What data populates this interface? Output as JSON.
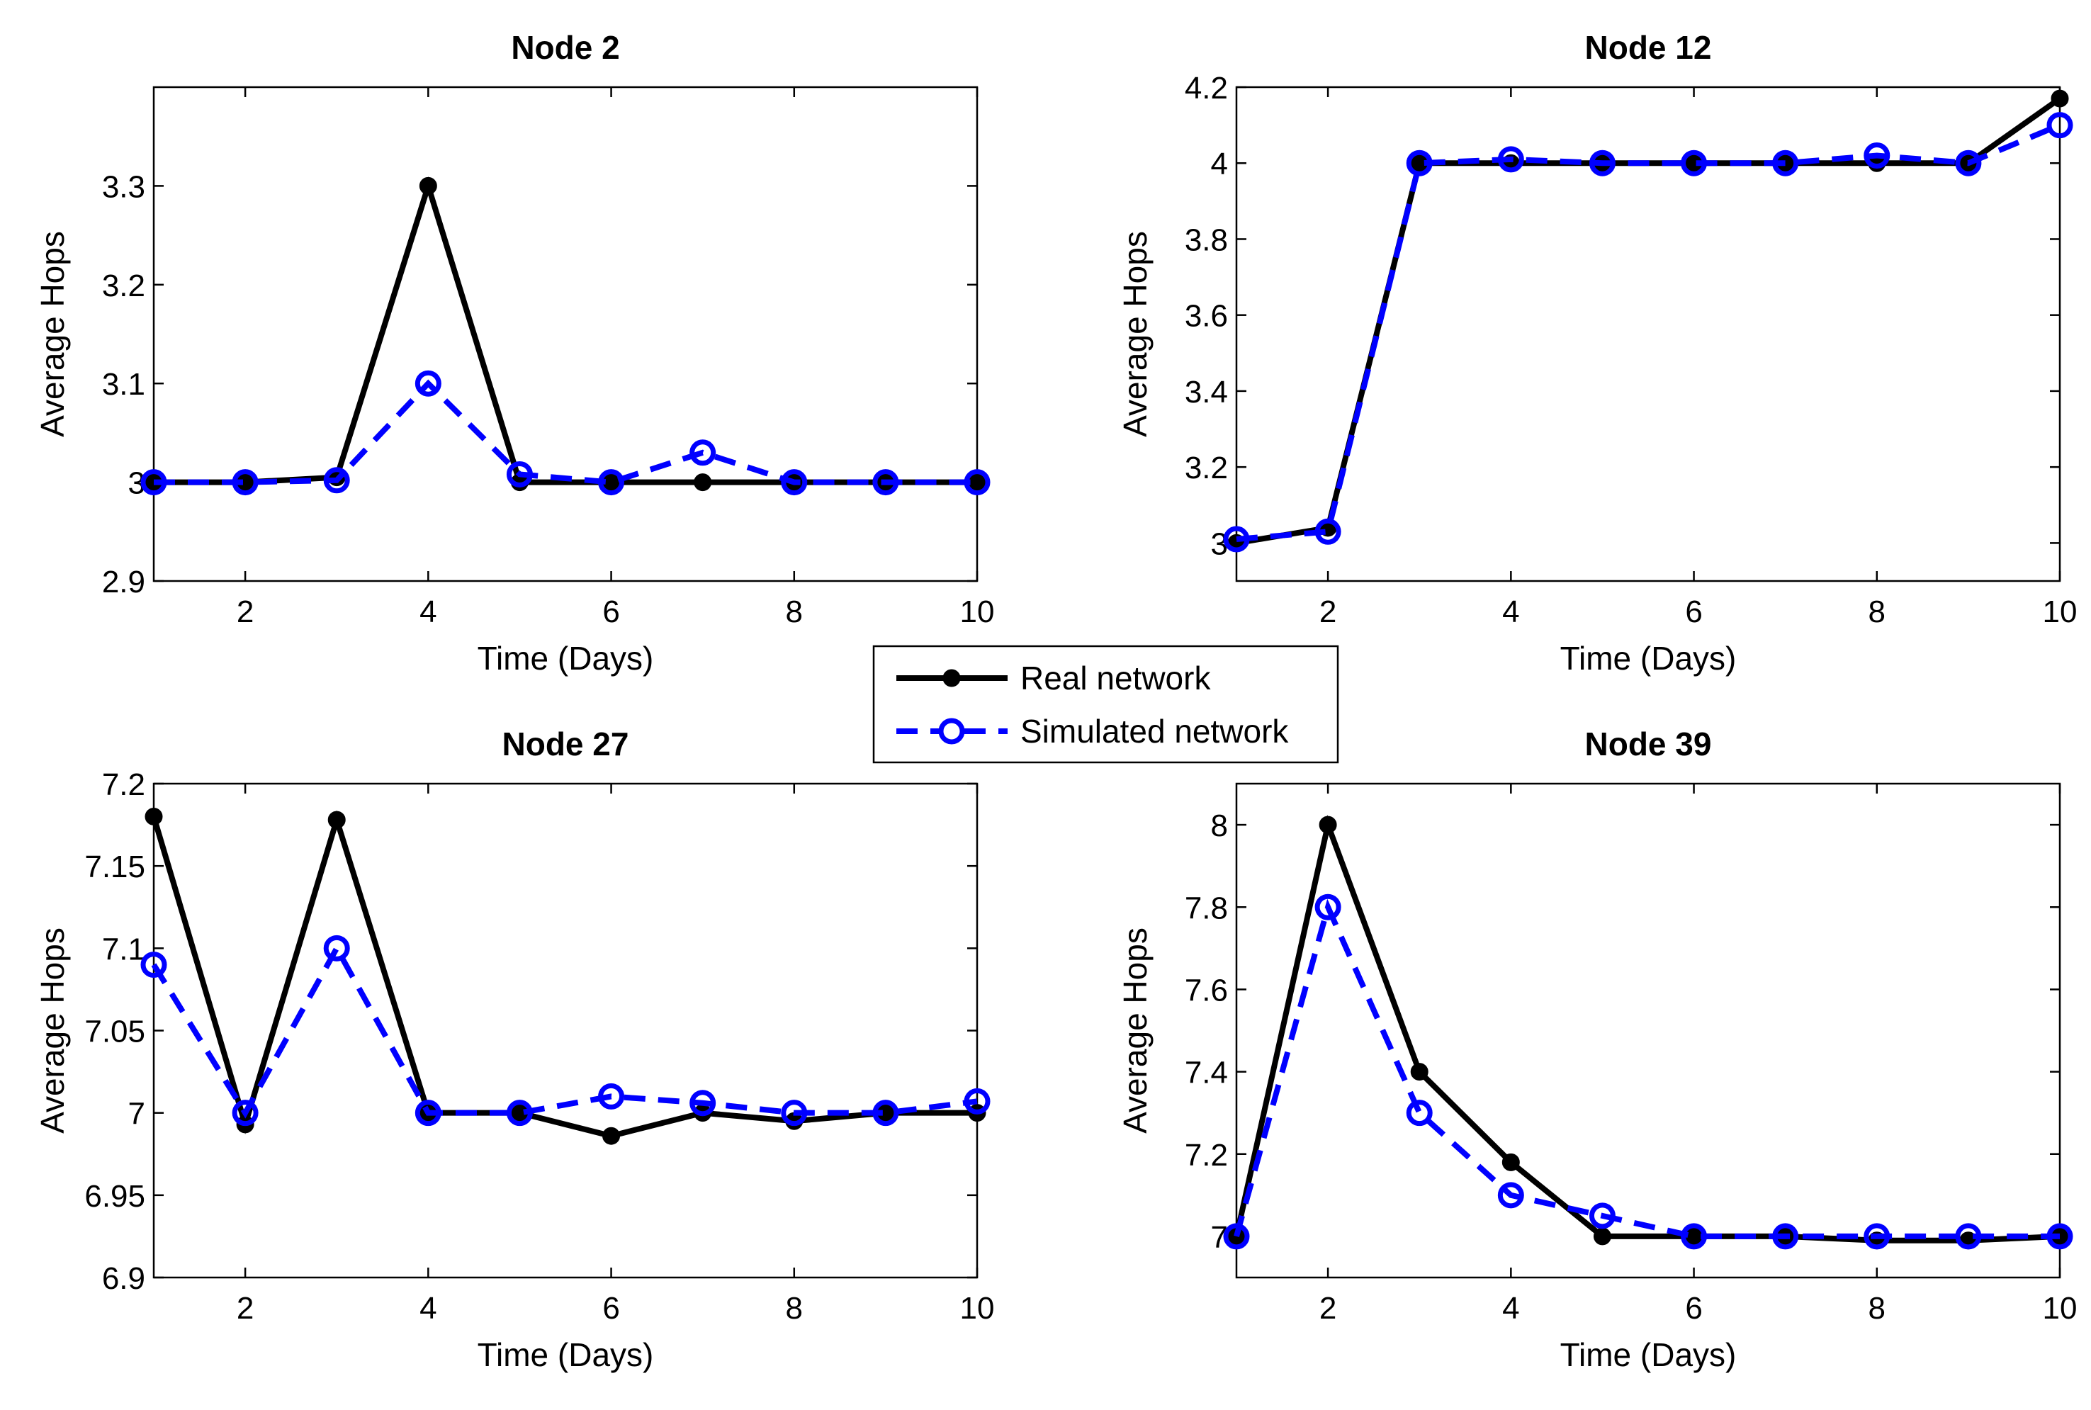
{
  "legend": {
    "entries": [
      {
        "label": "Real network",
        "color": "#000000",
        "style": "solid",
        "marker": "filled-circle"
      },
      {
        "label": "Simulated network",
        "color": "#0000ff",
        "style": "dashed",
        "marker": "open-circle"
      }
    ]
  },
  "chart_data": [
    {
      "type": "line",
      "title": "Node 2",
      "xlabel": "Time (Days)",
      "ylabel": "Average Hops",
      "xlim": [
        1,
        10
      ],
      "ylim": [
        2.9,
        3.4
      ],
      "xticks": [
        2,
        4,
        6,
        8,
        10
      ],
      "yticks": [
        2.9,
        3,
        3.1,
        3.2,
        3.3
      ],
      "ytick_labels": [
        "2.9",
        "3",
        "3.1",
        "3.2",
        "3.3"
      ],
      "grid": false,
      "x": [
        1,
        2,
        3,
        4,
        5,
        6,
        7,
        8,
        9,
        10
      ],
      "series": [
        {
          "name": "Real network",
          "values": [
            3.0,
            3.0,
            3.005,
            3.3,
            3.0,
            3.0,
            3.0,
            3.0,
            3.0,
            3.0
          ]
        },
        {
          "name": "Simulated network",
          "values": [
            3.0,
            3.0,
            3.002,
            3.1,
            3.008,
            3.0,
            3.03,
            3.0,
            3.0,
            3.0
          ]
        }
      ]
    },
    {
      "type": "line",
      "title": "Node 12",
      "xlabel": "Time (Days)",
      "ylabel": "Average Hops",
      "xlim": [
        1,
        10
      ],
      "ylim": [
        2.9,
        4.2
      ],
      "xticks": [
        2,
        4,
        6,
        8,
        10
      ],
      "yticks": [
        3,
        3.2,
        3.4,
        3.6,
        3.8,
        4,
        4.2
      ],
      "ytick_labels": [
        "3",
        "3.2",
        "3.4",
        "3.6",
        "3.8",
        "4",
        "4.2"
      ],
      "grid": false,
      "x": [
        1,
        2,
        3,
        4,
        5,
        6,
        7,
        8,
        9,
        10
      ],
      "series": [
        {
          "name": "Real network",
          "values": [
            3.0,
            3.04,
            4.0,
            4.0,
            4.0,
            4.0,
            4.0,
            4.0,
            4.0,
            4.17
          ]
        },
        {
          "name": "Simulated network",
          "values": [
            3.01,
            3.03,
            4.0,
            4.01,
            4.0,
            4.0,
            4.0,
            4.02,
            4.0,
            4.1
          ]
        }
      ]
    },
    {
      "type": "line",
      "title": "Node 27",
      "xlabel": "Time (Days)",
      "ylabel": "Average Hops",
      "xlim": [
        1,
        10
      ],
      "ylim": [
        6.9,
        7.2
      ],
      "xticks": [
        2,
        4,
        6,
        8,
        10
      ],
      "yticks": [
        6.9,
        6.95,
        7,
        7.05,
        7.1,
        7.15,
        7.2
      ],
      "ytick_labels": [
        "6.9",
        "6.95",
        "7",
        "7.05",
        "7.1",
        "7.15",
        "7.2"
      ],
      "grid": false,
      "x": [
        1,
        2,
        3,
        4,
        5,
        6,
        7,
        8,
        9,
        10
      ],
      "series": [
        {
          "name": "Real network",
          "values": [
            7.18,
            6.993,
            7.178,
            7.0,
            7.0,
            6.986,
            7.0,
            6.995,
            7.0,
            7.0
          ]
        },
        {
          "name": "Simulated network",
          "values": [
            7.09,
            7.0,
            7.1,
            7.0,
            7.0,
            7.01,
            7.006,
            7.0,
            7.0,
            7.007
          ]
        }
      ]
    },
    {
      "type": "line",
      "title": "Node 39",
      "xlabel": "Time (Days)",
      "ylabel": "Average Hops",
      "xlim": [
        1,
        10
      ],
      "ylim": [
        6.9,
        8.1
      ],
      "xticks": [
        2,
        4,
        6,
        8,
        10
      ],
      "yticks": [
        7,
        7.2,
        7.4,
        7.6,
        7.8,
        8
      ],
      "ytick_labels": [
        "7",
        "7.2",
        "7.4",
        "7.6",
        "7.8",
        "8"
      ],
      "grid": false,
      "x": [
        1,
        2,
        3,
        4,
        5,
        6,
        7,
        8,
        9,
        10
      ],
      "series": [
        {
          "name": "Real network",
          "values": [
            7.0,
            8.0,
            7.4,
            7.18,
            7.0,
            7.0,
            7.0,
            6.99,
            6.99,
            7.0
          ]
        },
        {
          "name": "Simulated network",
          "values": [
            7.0,
            7.8,
            7.3,
            7.1,
            7.05,
            7.0,
            7.0,
            7.0,
            7.0,
            7.0
          ]
        }
      ]
    }
  ]
}
